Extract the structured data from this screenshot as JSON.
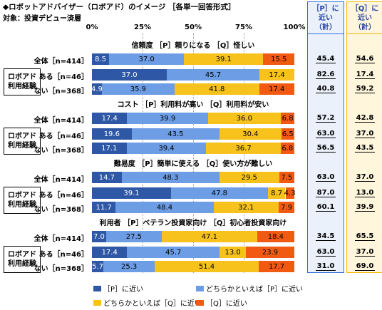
{
  "title": "◆ロボットアドバイザー（ロボアド）のイメージ ［各単一回答形式］",
  "subtitle": "対象：投資デビュー済層",
  "summary_headers": {
    "p": "［P］に\n近い\n（計）",
    "q": "［Q］に\n近い\n（計）"
  },
  "box_label": "ロボアド\n利用経験",
  "colors": {
    "p_close": "#2e58a6",
    "p_somewhat": "#6d9de4",
    "q_somewhat": "#f7c21b",
    "q_close": "#f25a14"
  },
  "chart_data": {
    "type": "bar",
    "stacked": true,
    "orientation": "horizontal",
    "x_ticks": [
      "0%",
      "25%",
      "50%",
      "75%",
      "100%"
    ],
    "xlim": [
      0,
      100
    ],
    "legend": [
      "［P］に近い",
      "どちらかといえば［P］に近い",
      "どちらかといえば［Q］に近い",
      "［Q］に近い"
    ],
    "items": [
      {
        "label": "信頼度 ［P］頼りになる ［Q］怪しい",
        "rows": [
          {
            "label": "全体［n=414］",
            "values": [
              8.5,
              37.0,
              39.1,
              15.5
            ],
            "p_total": "45.4",
            "q_total": "54.6"
          },
          {
            "label": "ある［n=46］",
            "values": [
              37.0,
              45.7,
              17.4,
              0
            ],
            "p_total": "82.6",
            "q_total": "17.4"
          },
          {
            "label": "ない［n=368］",
            "values": [
              4.9,
              35.9,
              41.8,
              17.4
            ],
            "p_total": "40.8",
            "q_total": "59.2"
          }
        ]
      },
      {
        "label": "コスト ［P］利用料が高い ［Q］利用料が安い",
        "rows": [
          {
            "label": "全体［n=414］",
            "values": [
              17.4,
              39.9,
              36.0,
              6.8
            ],
            "p_total": "57.2",
            "q_total": "42.8"
          },
          {
            "label": "ある［n=46］",
            "values": [
              19.6,
              43.5,
              30.4,
              6.5
            ],
            "p_total": "63.0",
            "q_total": "37.0"
          },
          {
            "label": "ない［n=368］",
            "values": [
              17.1,
              39.4,
              36.7,
              6.8
            ],
            "p_total": "56.5",
            "q_total": "43.5"
          }
        ]
      },
      {
        "label": "難易度 ［P］簡単に使える ［Q］使い方が難しい",
        "rows": [
          {
            "label": "全体［n=414］",
            "values": [
              14.7,
              48.3,
              29.5,
              7.5
            ],
            "p_total": "63.0",
            "q_total": "37.0"
          },
          {
            "label": "ある［n=46］",
            "values": [
              39.1,
              47.8,
              8.7,
              4.3
            ],
            "p_total": "87.0",
            "q_total": "13.0"
          },
          {
            "label": "ない［n=368］",
            "values": [
              11.7,
              48.4,
              32.1,
              7.9
            ],
            "p_total": "60.1",
            "q_total": "39.9"
          }
        ]
      },
      {
        "label": "利用者 ［P］ベテラン投資家向け ［Q］初心者投資家向け",
        "rows": [
          {
            "label": "全体［n=414］",
            "values": [
              7.0,
              27.5,
              47.1,
              18.4
            ],
            "p_total": "34.5",
            "q_total": "65.5"
          },
          {
            "label": "ある［n=46］",
            "values": [
              17.4,
              45.7,
              13.0,
              23.9
            ],
            "p_total": "63.0",
            "q_total": "37.0"
          },
          {
            "label": "ない［n=368］",
            "values": [
              5.7,
              25.3,
              51.4,
              17.7
            ],
            "p_total": "31.0",
            "q_total": "69.0"
          }
        ]
      }
    ]
  }
}
